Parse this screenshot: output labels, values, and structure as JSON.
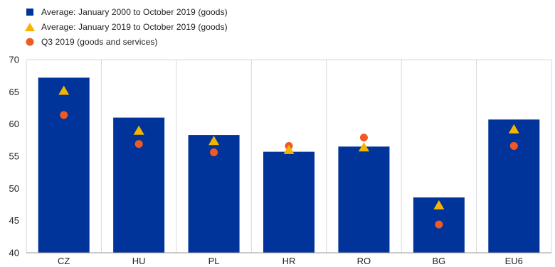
{
  "chart_data": {
    "type": "bar",
    "title": "",
    "xlabel": "",
    "ylabel": "",
    "categories": [
      "CZ",
      "HU",
      "PL",
      "HR",
      "RO",
      "BG",
      "EU6"
    ],
    "ylim": [
      40,
      70
    ],
    "yticks": [
      40,
      45,
      50,
      55,
      60,
      65,
      70
    ],
    "grid": "vertical separators between categories",
    "legend_position": "top-left",
    "series": [
      {
        "name": "Average: January 2000 to October 2019 (goods)",
        "mark": "bar",
        "color": "#00349a",
        "values": [
          67.2,
          61.0,
          58.3,
          55.7,
          56.5,
          48.6,
          60.7
        ]
      },
      {
        "name": "Average: January 2019 to October 2019 (goods)",
        "mark": "triangle",
        "color": "#f5b400",
        "values": [
          65.2,
          59.0,
          57.4,
          56.0,
          56.4,
          47.4,
          59.2
        ]
      },
      {
        "name": "Q3 2019 (goods and services)",
        "mark": "circle",
        "color": "#f05a22",
        "values": [
          61.4,
          56.9,
          55.6,
          56.6,
          57.9,
          44.4,
          56.6
        ]
      }
    ]
  }
}
